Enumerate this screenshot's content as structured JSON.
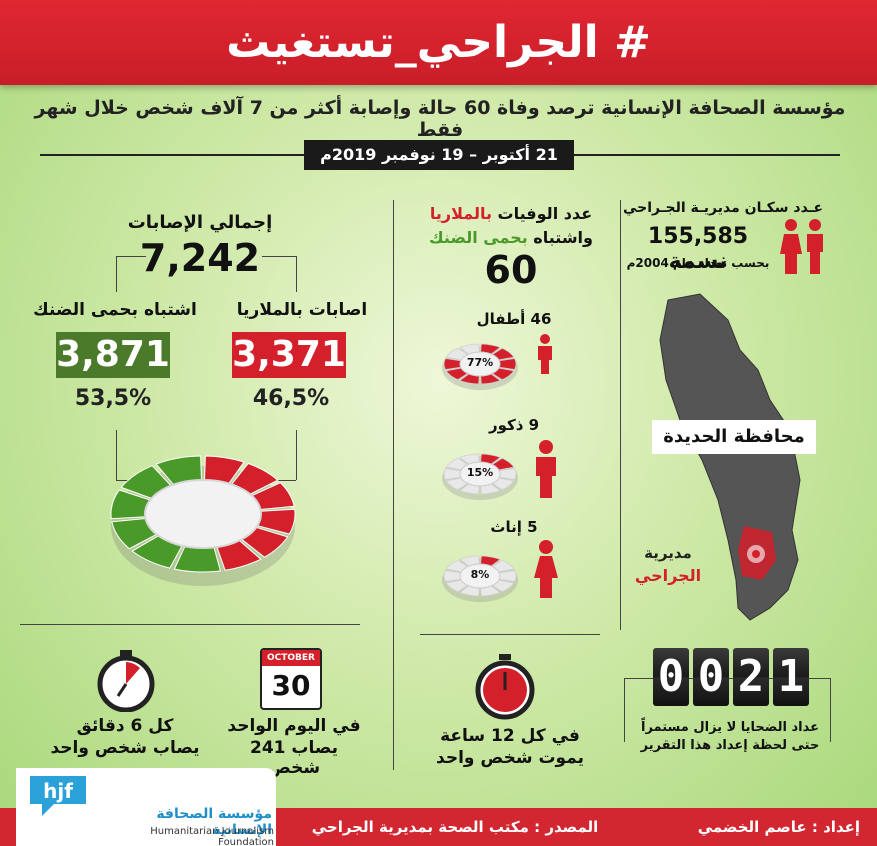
{
  "header": {
    "title": "# الجراحي_تستغيث",
    "color": "#d4202a"
  },
  "subtitle": "مؤسسة الصحافة الإنسانية ترصد وفاة 60 حالة وإصابة أكثر من 7 آلاف شخص خلال شهر فقط",
  "date_range": "21 أكتوبر – 19 نوفمبر 2019م",
  "injuries": {
    "total_label": "إجمالي الإصابات",
    "total_value": "7,242",
    "malaria_label": "اصابات بالملاريا",
    "malaria_value": "3,371",
    "malaria_pct_label": "46,5%",
    "dengue_label": "اشتباه بحمى الضنك",
    "dengue_value": "3,871",
    "dengue_pct_label": "53,5%"
  },
  "deaths": {
    "title_part1": "عدد الوفيات ",
    "title_part1_highlight": "بالملاريا",
    "title_part2": "واشتباه ",
    "title_part2_highlight": "بحمى الضنك",
    "total": "60",
    "children_label": "46 أطفال",
    "children_pct_label": "77%",
    "males_label": "9 ذكور",
    "males_pct_label": "15%",
    "females_label": "5 إناث",
    "females_pct_label": "8%"
  },
  "population": {
    "title": "عـدد سكـان مديريـة الجـراحي",
    "value": "155,585 نسمة",
    "note": "بحسب تعداد عام 2004م"
  },
  "map": {
    "governorate_label": "محافظة الحديدة",
    "district_label_1": "مديرية",
    "district_label_2": "الجراحي"
  },
  "timers": {
    "six_min_line1": "كل 6 دقائق",
    "six_min_line2": "يصاب شخص واحد",
    "calendar_month": "OCTOBER",
    "calendar_day": "30",
    "daily_line1": "في اليوم الواحد",
    "daily_line2": "يصاب 241 شخص",
    "twelve_hr_line1": "في كل 12 ساعة",
    "twelve_hr_line2": "يموت شخص واحد"
  },
  "counter": {
    "digits": [
      "0",
      "0",
      "2",
      "1"
    ],
    "note_line1": "عداد الضحايا لا يزال مستمراً",
    "note_line2": "حتى لحظة إعداد هذا التقرير"
  },
  "footer": {
    "prepared_by": "إعداد : عاصم الخضمي",
    "source": "المصدر : مكتب الصحة بمديرية الجراحي",
    "org_ar": "مؤسسة الصحافة الإنسانية",
    "org_en": "Humanitarian Journalism Foundation"
  },
  "chart_data": [
    {
      "type": "pie",
      "categories": [
        "اصابات بالملاريا",
        "اشتباه بحمى الضنك"
      ],
      "values": [
        3371,
        3871
      ],
      "percent": [
        46.5,
        53.5
      ],
      "colors": [
        "#d4202a",
        "#4a9a2a"
      ]
    },
    {
      "type": "pie",
      "categories": [
        "أطفال",
        "ذكور",
        "إناث"
      ],
      "values": [
        46,
        9,
        5
      ],
      "percent": [
        77,
        15,
        8
      ],
      "colors": [
        "#d4202a",
        "#d4202a",
        "#d4202a"
      ]
    }
  ]
}
